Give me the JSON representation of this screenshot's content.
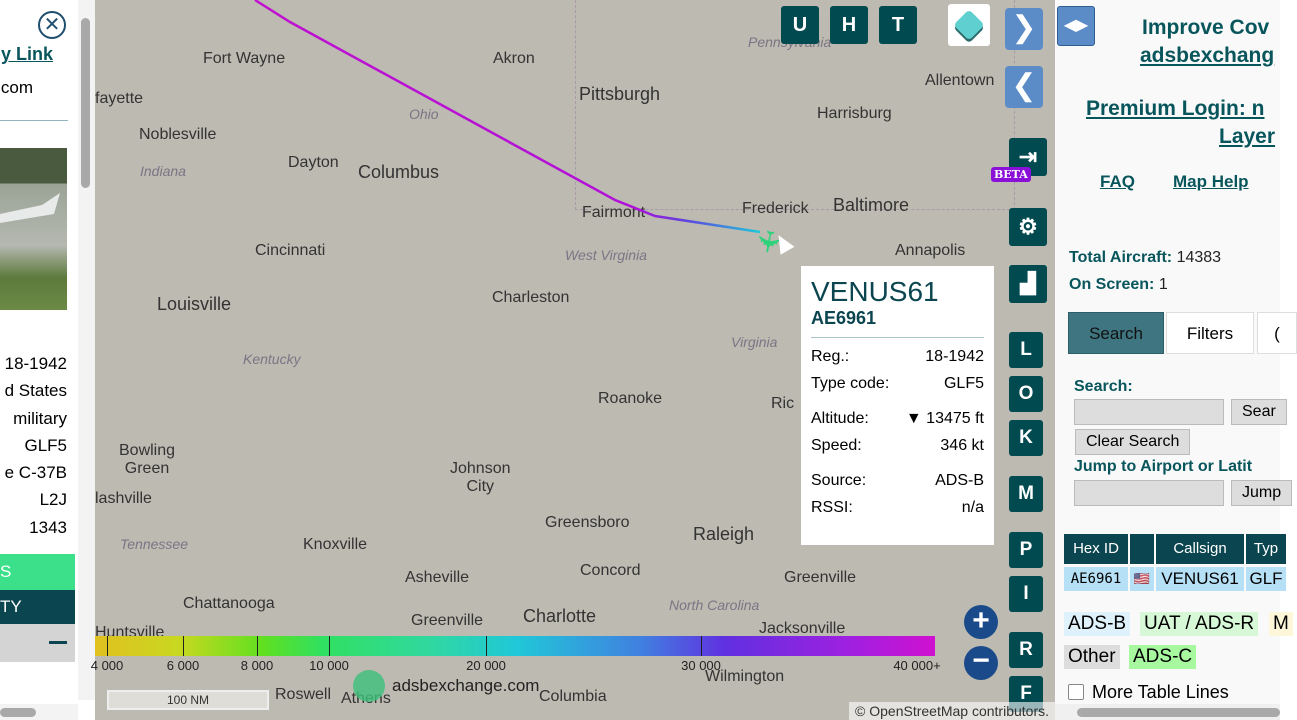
{
  "left_panel": {
    "link": "y Link",
    "domain_fragment": "com",
    "values": [
      "18-1942",
      "d States",
      "military",
      "GLF5",
      "e C-37B",
      "L2J",
      "1343"
    ],
    "bar1": "S",
    "bar2": "TY"
  },
  "map": {
    "cities": [
      [
        "Fort Wayne",
        108,
        50
      ],
      [
        "Akron",
        398,
        50
      ],
      [
        "Pittsburgh",
        484,
        84
      ],
      [
        "Harrisburg",
        722,
        105
      ],
      [
        "Allentown",
        830,
        72
      ],
      [
        "fayette",
        0,
        90
      ],
      [
        "Noblesville",
        44,
        126
      ],
      [
        "Dayton",
        193,
        154
      ],
      [
        "Columbus",
        263,
        162
      ],
      [
        "Fairmont",
        487,
        204
      ],
      [
        "Frederick",
        647,
        200
      ],
      [
        "Baltimore",
        738,
        195
      ],
      [
        "Annapolis",
        800,
        242
      ],
      [
        "Cincinnati",
        160,
        242
      ],
      [
        "Louisville",
        62,
        294
      ],
      [
        "Charleston",
        397,
        289
      ],
      [
        "Roanoke",
        503,
        390
      ],
      [
        "Ric",
        676,
        395
      ],
      [
        "Bowling\nGreen",
        24,
        442
      ],
      [
        "Johnson\nCity",
        355,
        460
      ],
      [
        "lashville",
        0,
        490
      ],
      [
        "Greensboro",
        450,
        514
      ],
      [
        "Raleigh",
        598,
        524
      ],
      [
        "Knoxville",
        208,
        536
      ],
      [
        "Concord",
        485,
        562
      ],
      [
        "Greenville",
        689,
        569
      ],
      [
        "Asheville",
        310,
        569
      ],
      [
        "Chattanooga",
        88,
        595
      ],
      [
        "Charlotte",
        428,
        606
      ],
      [
        "Greenville",
        316,
        612
      ],
      [
        "Jacksonville",
        664,
        620
      ],
      [
        "Huntsville",
        0,
        624
      ],
      [
        "Wilmington",
        610,
        668
      ],
      [
        "Roswell",
        180,
        686
      ],
      [
        "Athens",
        246,
        690
      ],
      [
        "Columbia",
        444,
        688
      ]
    ],
    "regions": [
      [
        "Ohio",
        314,
        106
      ],
      [
        "Indiana",
        45,
        163
      ],
      [
        "West Virginia",
        470,
        247
      ],
      [
        "Virginia",
        636,
        334
      ],
      [
        "Kentucky",
        148,
        351
      ],
      [
        "Tennessee",
        25,
        536
      ],
      [
        "North Carolina",
        574,
        597
      ],
      [
        "Pennsylvania",
        653,
        34
      ]
    ],
    "flight_path_colors": [
      "#c010d0",
      "#8030e0",
      "#20c8d8"
    ],
    "aircraft_color": "#2ed27a",
    "top_buttons": [
      "U",
      "H",
      "T"
    ],
    "side_buttons": [
      "L",
      "O",
      "K",
      "M",
      "P",
      "I",
      "R",
      "F"
    ],
    "beta_label": "BETA",
    "legend": {
      "labels": [
        "4 000",
        "6 000",
        "8 000",
        "10 000",
        "20 000",
        "30 000",
        "40 000+"
      ]
    },
    "scale": "100 NM",
    "watermark": "adsbexchange.com",
    "attribution": "© OpenStreetMap contributors."
  },
  "popup": {
    "callsign": "VENUS61",
    "hex": "AE6961",
    "rows": [
      [
        "Reg.:",
        "18-1942"
      ],
      [
        "Type code:",
        "GLF5"
      ],
      [
        "Altitude:",
        "▼ 13475 ft"
      ],
      [
        "Speed:",
        "346 kt"
      ],
      [
        "Source:",
        "ADS-B"
      ],
      [
        "RSSI:",
        "n/a"
      ]
    ]
  },
  "right_panel": {
    "improve": "Improve Cov",
    "site": "adsbexchang",
    "premium": "Premium Login: n",
    "layers": "Layer",
    "faq": "FAQ",
    "map_help": "Map Help",
    "total_label": "Total Aircraft:",
    "total": "14383",
    "onscreen_label": "On Screen:",
    "onscreen": "1",
    "tabs": [
      "Search",
      "Filters",
      "("
    ],
    "search_label": "Search:",
    "search_btn": "Sear",
    "clear_btn": "Clear Search",
    "jump_label": "Jump to Airport or Latit",
    "jump_btn": "Jump",
    "table": {
      "headers": [
        "Hex ID",
        "",
        "Callsign",
        "Typ"
      ],
      "row": [
        "AE6961",
        "🇺🇸",
        "VENUS61",
        "GLF"
      ]
    },
    "legend_chips": [
      "ADS-B",
      "UAT / ADS-R",
      "M",
      "Other",
      "ADS-C"
    ],
    "more_lines": "More Table Lines"
  }
}
